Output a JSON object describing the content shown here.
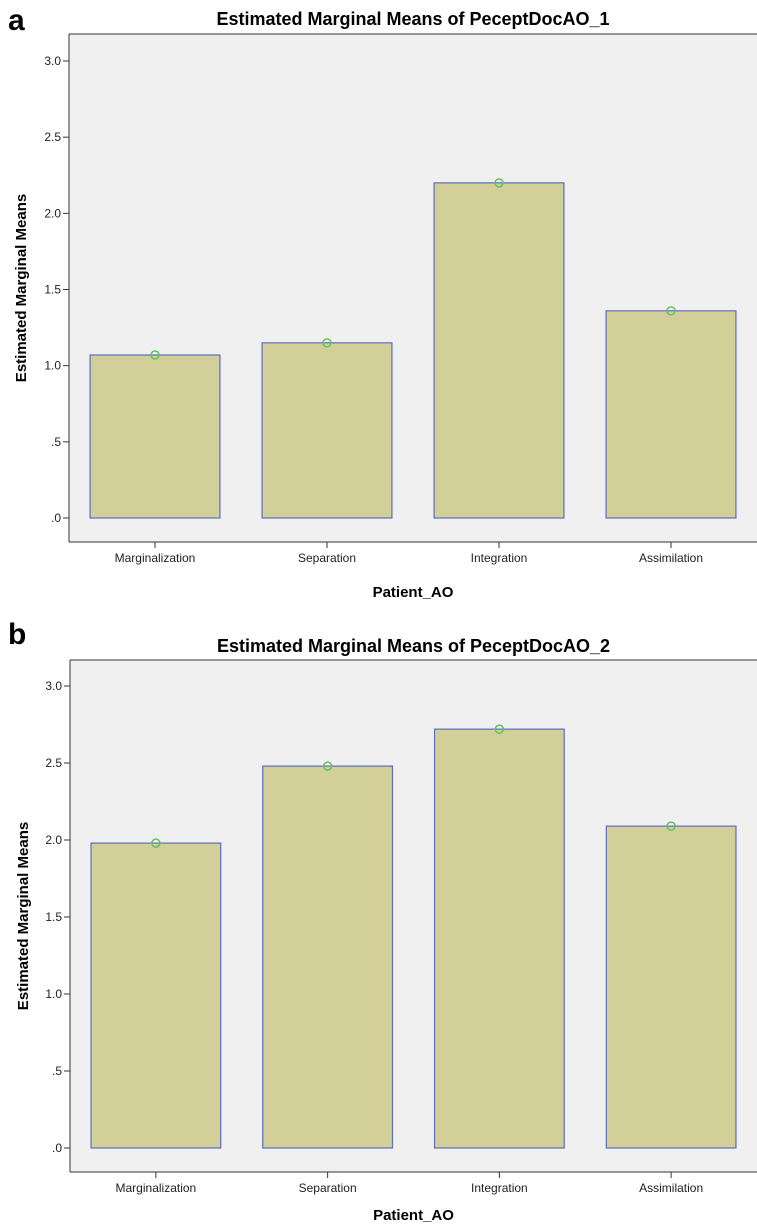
{
  "chart_data": [
    {
      "panel_label": "a",
      "type": "bar",
      "title": "Estimated Marginal Means of PeceptDocAO_1",
      "xlabel": "Patient_AO",
      "ylabel": "Estimated Marginal Means",
      "categories": [
        "Marginalization",
        "Separation",
        "Integration",
        "Assimilation"
      ],
      "values": [
        1.07,
        1.15,
        2.2,
        1.36
      ],
      "ylim": [
        0,
        3.0
      ],
      "yticks": [
        0,
        0.5,
        1.0,
        1.5,
        2.0,
        2.5,
        3.0
      ],
      "ytick_labels": [
        ".0",
        ".5",
        "1.0",
        "1.5",
        "2.0",
        "2.5",
        "3.0"
      ],
      "grid": false,
      "bar_color": "#d3cf98",
      "bar_edge_color": "#5b6ec2",
      "marker_color": "#5fc35f",
      "plot_background": "#f0f0f0"
    },
    {
      "panel_label": "b",
      "type": "bar",
      "title": "Estimated Marginal Means of PeceptDocAO_2",
      "xlabel": "Patient_AO",
      "ylabel": "Estimated Marginal Means",
      "categories": [
        "Marginalization",
        "Separation",
        "Integration",
        "Assimilation"
      ],
      "values": [
        1.98,
        2.48,
        2.72,
        2.09
      ],
      "ylim": [
        0,
        3.0
      ],
      "yticks": [
        0,
        0.5,
        1.0,
        1.5,
        2.0,
        2.5,
        3.0
      ],
      "ytick_labels": [
        ".0",
        ".5",
        "1.0",
        "1.5",
        "2.0",
        "2.5",
        "3.0"
      ],
      "grid": false,
      "bar_color": "#d3cf98",
      "bar_edge_color": "#5b6ec2",
      "marker_color": "#5fc35f",
      "plot_background": "#f0f0f0"
    }
  ]
}
